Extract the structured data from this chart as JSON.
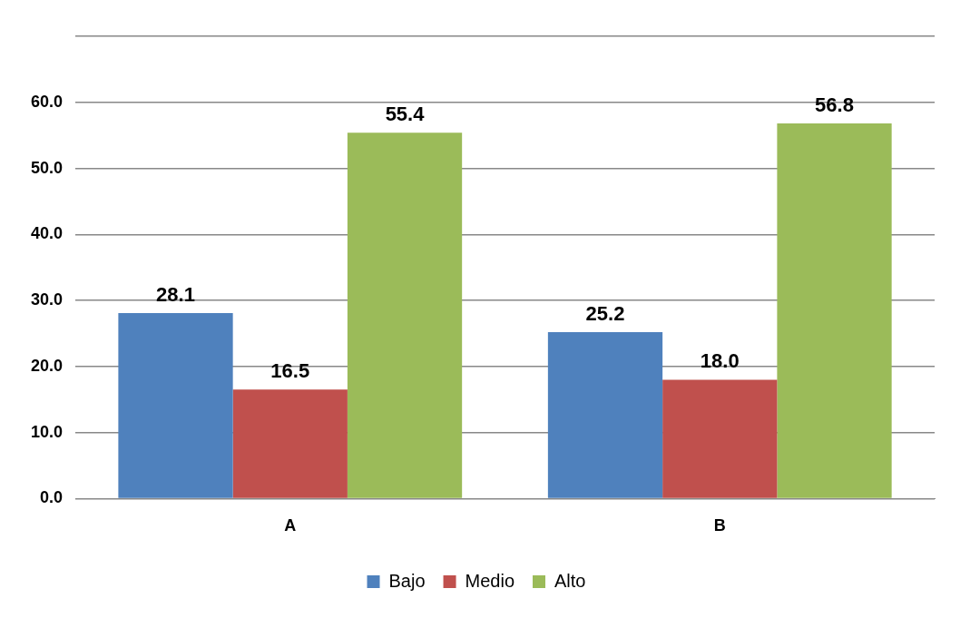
{
  "chart_data": {
    "type": "bar",
    "categories": [
      "A",
      "B"
    ],
    "series": [
      {
        "name": "Bajo",
        "color": "#4f81bd",
        "values": [
          28.1,
          25.2
        ],
        "value_labels": [
          "28.1",
          "25.2"
        ]
      },
      {
        "name": "Medio",
        "color": "#c0504d",
        "values": [
          16.5,
          18.0
        ],
        "value_labels": [
          "16.5",
          "18.0"
        ]
      },
      {
        "name": "Alto",
        "color": "#9bbb59",
        "values": [
          55.4,
          56.8
        ],
        "value_labels": [
          "55.4",
          "56.8"
        ]
      }
    ],
    "ylim": [
      0,
      70
    ],
    "yticks": [
      {
        "value": 0,
        "label": "0.0"
      },
      {
        "value": 10,
        "label": "10.0"
      },
      {
        "value": 20,
        "label": "20.0"
      },
      {
        "value": 30,
        "label": "30.0"
      },
      {
        "value": 40,
        "label": "40.0"
      },
      {
        "value": 50,
        "label": "50.0"
      },
      {
        "value": 60,
        "label": "60.0"
      },
      {
        "value": 70,
        "label": null
      }
    ],
    "grid": "y",
    "legend": "bottom"
  }
}
